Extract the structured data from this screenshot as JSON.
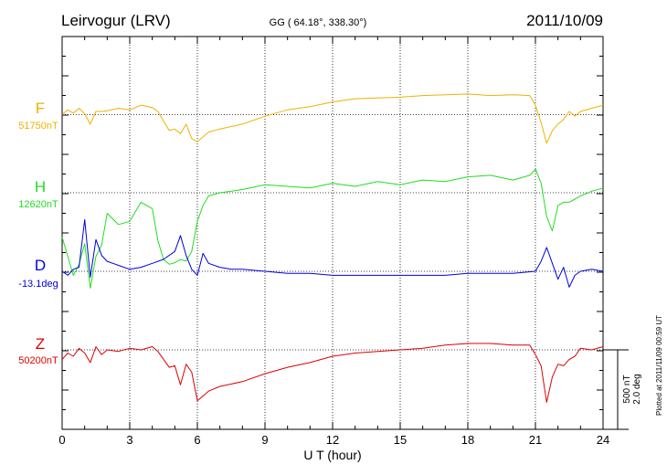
{
  "header": {
    "station": "Leirvogur (LRV)",
    "coords": "GG ( 64.18°, 338.30°)",
    "date": "2011/10/09"
  },
  "plotted_note": "Plotted at 2011/11/09 00:59 UT",
  "scale": {
    "nt": "500 nT",
    "deg": "2.0 deg"
  },
  "chart_data": {
    "type": "line",
    "xlabel": "U T (hour)",
    "xlim": [
      0,
      24
    ],
    "xticks": [
      "0",
      "3",
      "6",
      "9",
      "12",
      "15",
      "18",
      "21",
      "24"
    ],
    "grid": true,
    "series": [
      {
        "name": "F",
        "baseline_label": "51750nT",
        "color": "#f0b000",
        "x": [
          0,
          0.25,
          0.5,
          0.75,
          1,
          1.25,
          1.5,
          1.75,
          2,
          2.5,
          3,
          3.5,
          4,
          4.25,
          4.5,
          4.75,
          5,
          5.25,
          5.5,
          5.75,
          6,
          6.5,
          7,
          8,
          9,
          10,
          11,
          12,
          13,
          14,
          15,
          16,
          17,
          18,
          19,
          20,
          20.75,
          21,
          21.25,
          21.5,
          21.75,
          22,
          22.25,
          22.5,
          22.75,
          23,
          23.5,
          24
        ],
        "values": [
          0,
          30,
          10,
          40,
          5,
          -60,
          20,
          20,
          25,
          40,
          30,
          60,
          45,
          20,
          -40,
          -100,
          -90,
          -120,
          -60,
          -150,
          -170,
          -110,
          -90,
          -60,
          -10,
          30,
          50,
          80,
          100,
          105,
          110,
          120,
          125,
          130,
          120,
          125,
          120,
          60,
          -50,
          -180,
          -100,
          -60,
          -30,
          20,
          -10,
          20,
          40,
          60
        ]
      },
      {
        "name": "H",
        "baseline_label": "12620nT",
        "color": "#22dd22",
        "x": [
          0,
          0.25,
          0.5,
          0.75,
          1,
          1.25,
          1.5,
          1.75,
          2,
          2.5,
          3,
          3.5,
          4,
          4.25,
          4.5,
          4.75,
          5,
          5.25,
          5.5,
          5.75,
          6,
          6.25,
          6.5,
          7,
          8,
          9,
          10,
          11,
          12,
          13,
          14,
          15,
          16,
          17,
          18,
          19,
          20,
          20.75,
          21,
          21.25,
          21.5,
          21.75,
          22,
          22.25,
          22.5,
          22.75,
          23,
          23.5,
          24
        ],
        "values": [
          -280,
          -400,
          -520,
          -450,
          -320,
          -600,
          -400,
          -330,
          -130,
          -200,
          -180,
          -60,
          -100,
          -300,
          -420,
          -450,
          -440,
          -420,
          -430,
          -370,
          -180,
          -80,
          -20,
          0,
          20,
          50,
          40,
          30,
          60,
          40,
          70,
          50,
          80,
          70,
          100,
          110,
          80,
          110,
          150,
          60,
          -150,
          -240,
          -80,
          -60,
          -60,
          -40,
          -20,
          10,
          30
        ]
      },
      {
        "name": "D",
        "baseline_label": "-13.1deg",
        "color": "#0000dd",
        "x": [
          0,
          0.25,
          0.5,
          0.75,
          1,
          1.25,
          1.5,
          1.75,
          2,
          2.5,
          3,
          3.5,
          4,
          4.5,
          5,
          5.25,
          5.5,
          5.75,
          6,
          6.25,
          6.5,
          7,
          7.5,
          8,
          9,
          10,
          11,
          12,
          13,
          14,
          15,
          16,
          17,
          18,
          19,
          20,
          21,
          21.25,
          21.5,
          21.75,
          22,
          22.25,
          22.5,
          22.75,
          23,
          23.5,
          24
        ],
        "values": [
          0,
          -0.2,
          0.1,
          0.2,
          2.6,
          -0.3,
          1.6,
          0.8,
          0.5,
          0.3,
          0.1,
          0.2,
          0.4,
          0.6,
          1.0,
          1.8,
          0.8,
          0.1,
          -0.2,
          0.9,
          0.4,
          0.2,
          0.1,
          0.1,
          0,
          -0.1,
          -0.1,
          -0.2,
          -0.2,
          -0.2,
          -0.2,
          -0.2,
          -0.2,
          -0.1,
          -0.1,
          -0.1,
          0,
          0.5,
          1.2,
          0.4,
          -0.4,
          0.2,
          -0.8,
          -0.2,
          0,
          0.1,
          0
        ]
      },
      {
        "name": "Z",
        "baseline_label": "50200nT",
        "color": "#dd0000",
        "x": [
          0,
          0.25,
          0.5,
          0.75,
          1,
          1.25,
          1.5,
          1.75,
          2,
          2.5,
          3,
          3.5,
          4,
          4.25,
          4.5,
          4.75,
          5,
          5.25,
          5.5,
          5.75,
          6,
          6.5,
          7,
          8,
          9,
          10,
          11,
          12,
          13,
          14,
          15,
          16,
          17,
          18,
          19,
          20,
          20.75,
          21,
          21.25,
          21.5,
          21.75,
          22,
          22.25,
          22.5,
          22.75,
          23,
          23.5,
          24
        ],
        "values": [
          -60,
          -20,
          -40,
          10,
          -20,
          -80,
          20,
          -30,
          0,
          -10,
          10,
          0,
          20,
          -10,
          -60,
          -110,
          -100,
          -220,
          -90,
          -140,
          -320,
          -260,
          -230,
          -200,
          -150,
          -110,
          -80,
          -40,
          -20,
          -10,
          0,
          10,
          30,
          40,
          40,
          30,
          30,
          -30,
          -100,
          -330,
          -170,
          -90,
          -100,
          -60,
          -40,
          10,
          0,
          20
        ]
      }
    ]
  }
}
